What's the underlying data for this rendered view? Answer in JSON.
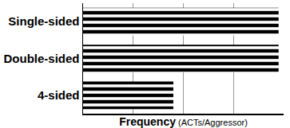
{
  "chart_data": {
    "type": "bar",
    "orientation": "horizontal",
    "categories": [
      "Single-sided",
      "Double-sided",
      "4-sided"
    ],
    "values": [
      3.9,
      3.9,
      1.8
    ],
    "color": "#000000",
    "xlabel": "Frequency (ACTs/Aggressor)",
    "xlim": [
      0,
      4
    ],
    "xticks": [
      0,
      1,
      2,
      3,
      4
    ],
    "grid": true,
    "tick_labels": "y"
  }
}
